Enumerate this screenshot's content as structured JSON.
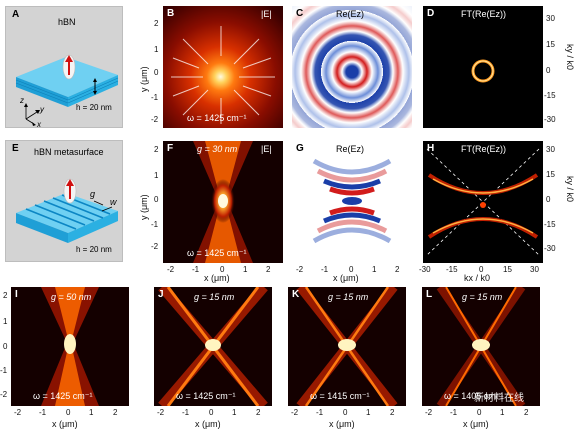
{
  "panels": {
    "A": {
      "letter": "A",
      "title": "hBN",
      "h_text": "h = 20 nm",
      "axes": [
        "z",
        "y",
        "x"
      ]
    },
    "B": {
      "letter": "B",
      "title": "|E|",
      "omega": "ω = 1425 cm⁻¹"
    },
    "C": {
      "letter": "C",
      "title": "Re(Ez)"
    },
    "D": {
      "letter": "D",
      "title": "FT(Re(Ez))"
    },
    "E": {
      "letter": "E",
      "title": "hBN metasurface",
      "g_label": "g",
      "w_label": "w",
      "h_text": "h = 20 nm"
    },
    "F": {
      "letter": "F",
      "title": "|E|",
      "g_text": "g = 30 nm",
      "omega": "ω = 1425 cm⁻¹"
    },
    "G": {
      "letter": "G",
      "title": "Re(Ez)"
    },
    "H": {
      "letter": "H",
      "title": "FT(Re(Ez))"
    },
    "I": {
      "letter": "I",
      "g_text": "g = 50 nm",
      "omega": "ω = 1425 cm⁻¹"
    },
    "J": {
      "letter": "J",
      "g_text": "g = 15 nm",
      "omega": "ω = 1425 cm⁻¹"
    },
    "K": {
      "letter": "K",
      "g_text": "g = 15 nm",
      "omega": "ω = 1415 cm⁻¹"
    },
    "L": {
      "letter": "L",
      "g_text": "g = 15 nm",
      "omega": "ω = 1405 cm⁻¹"
    }
  },
  "axes": {
    "y_label": "y (μm)",
    "x_label": "x (μm)",
    "ky_label": "ky / k0",
    "kx_label": "kx / k0",
    "real_ticks": [
      "2",
      "1",
      "0",
      "-1",
      "-2"
    ],
    "real_ticks_x": [
      "-2",
      "-1",
      "0",
      "1",
      "2"
    ],
    "k_ticks": [
      "30",
      "15",
      "0",
      "-15",
      "-30"
    ],
    "k_ticks_x": [
      "-30",
      "-15",
      "0",
      "15",
      "30"
    ]
  },
  "watermark": "新材料在线",
  "colors": {
    "hot_bg": "#140000",
    "hot_mid": "#b01000",
    "hot_hi": "#ff6a00",
    "hot_core": "#ffffe0",
    "red": "#d21c1c",
    "blue": "#1a3ea8",
    "slab": "#39b8e8"
  }
}
